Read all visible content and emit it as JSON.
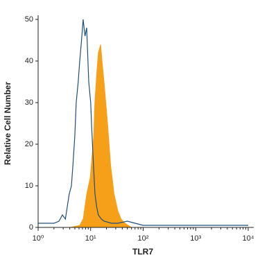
{
  "chart_data": {
    "type": "histogram-overlay",
    "x_label": "TLR7",
    "y_label": "Relative Cell Number",
    "xlim": [
      1,
      10000
    ],
    "xscale": "log",
    "xticks": [
      {
        "value": 1,
        "label": "10⁰"
      },
      {
        "value": 10,
        "label": "10¹"
      },
      {
        "value": 100,
        "label": "10²"
      },
      {
        "value": 1000,
        "label": "10³"
      },
      {
        "value": 10000,
        "label": "10⁴"
      }
    ],
    "xminorticks": [
      2,
      3,
      4,
      5,
      6,
      7,
      8,
      9,
      20,
      30,
      40,
      50,
      60,
      70,
      80,
      90,
      200,
      300,
      400,
      500,
      600,
      700,
      800,
      900,
      2000,
      3000,
      4000,
      5000,
      6000,
      7000,
      8000,
      9000
    ],
    "ylim": [
      0,
      50
    ],
    "yticks": [
      0,
      10,
      20,
      30,
      40,
      50
    ],
    "series": [
      {
        "color": "#f6a01a",
        "fill": true,
        "x": [
          4,
          6.2,
          7.2,
          8.4,
          9.8,
          11.4,
          12,
          13.2,
          14,
          15.5,
          16.5,
          18,
          21,
          24,
          28,
          33,
          38,
          45,
          52,
          60
        ],
        "values": [
          0,
          0.5,
          2,
          8,
          12,
          22,
          30,
          38,
          42,
          44,
          40,
          35,
          25,
          15,
          8,
          4,
          2,
          1,
          0.5,
          0
        ]
      },
      {
        "color": "#1f4e79",
        "fill": false,
        "x": [
          1,
          1.5,
          2,
          2.5,
          2.9,
          3.3,
          3.9,
          4.3,
          4.6,
          5,
          5.3,
          5.8,
          6.2,
          6.7,
          7.2,
          7.8,
          8.4,
          9.2,
          10,
          10.4,
          11,
          12.1,
          13,
          14,
          16,
          18,
          25,
          33,
          50,
          70,
          100,
          200,
          500,
          1000,
          3000,
          10000
        ],
        "values": [
          1,
          1,
          1,
          1.5,
          3,
          2,
          8,
          10,
          15,
          22,
          30,
          35,
          40,
          45,
          50,
          46,
          48,
          35,
          30,
          25,
          18,
          8,
          5,
          3,
          2,
          1.5,
          1,
          1,
          1.5,
          1,
          0.5,
          0.5,
          0.5,
          0.5,
          0.5,
          0.5
        ]
      }
    ]
  }
}
